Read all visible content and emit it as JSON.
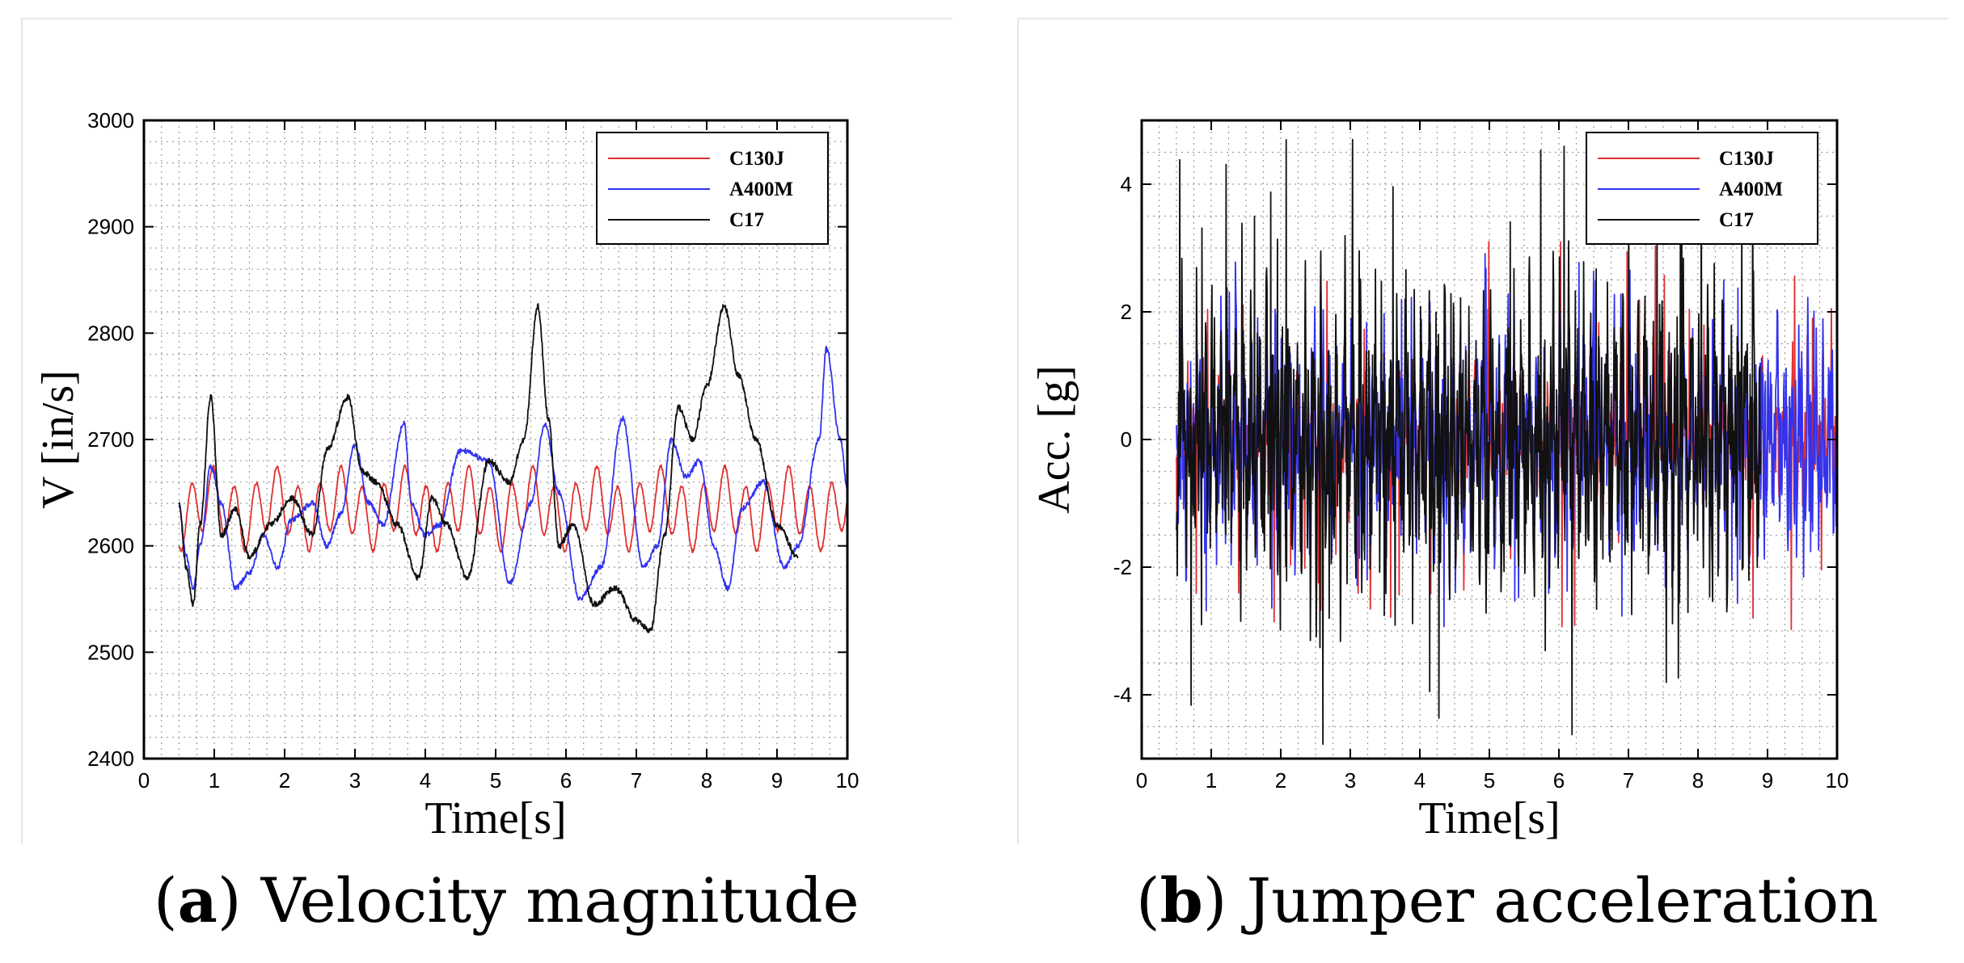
{
  "chart_data": [
    {
      "type": "line",
      "caption_letter": "a",
      "caption_open": "(",
      "caption_close": ")",
      "caption_text": "Velocity magnitude",
      "xlabel": "Time[s]",
      "ylabel": "V [in/s]",
      "xlim": [
        0,
        10
      ],
      "ylim": [
        2400,
        3000
      ],
      "xticks": [
        0,
        1,
        2,
        3,
        4,
        5,
        6,
        7,
        8,
        9,
        10
      ],
      "yticks": [
        2400,
        2500,
        2600,
        2700,
        2800,
        2900,
        3000
      ],
      "x_minor_step": 0.25,
      "y_minor_step": 20,
      "grid": true,
      "legend_position": "top-right",
      "colors": {
        "C130J": "#e03030",
        "A400M": "#3333ee",
        "C17": "#111111"
      },
      "series": [
        {
          "name": "C130J",
          "x_start": 0.5,
          "x_end": 10.0,
          "base": 2635,
          "components": [
            [
              28,
              3.3,
              0.0
            ],
            [
              12,
              1.1,
              1.2
            ]
          ],
          "noise": 1.5
        },
        {
          "name": "A400M",
          "x_start": 0.5,
          "x_end": 10.0,
          "x": [
            0.5,
            0.6,
            0.7,
            0.8,
            0.95,
            1.1,
            1.3,
            1.5,
            1.7,
            1.9,
            2.1,
            2.4,
            2.6,
            2.8,
            3.0,
            3.2,
            3.4,
            3.7,
            3.8,
            4.0,
            4.2,
            4.5,
            4.9,
            5.2,
            5.5,
            5.7,
            5.9,
            6.2,
            6.5,
            6.8,
            7.1,
            7.3,
            7.5,
            7.7,
            7.9,
            8.1,
            8.3,
            8.5,
            8.8,
            9.1,
            9.3,
            9.6,
            9.7,
            9.9,
            10.0
          ],
          "y": [
            2638,
            2590,
            2560,
            2600,
            2675,
            2640,
            2560,
            2575,
            2610,
            2580,
            2625,
            2640,
            2600,
            2630,
            2695,
            2640,
            2620,
            2715,
            2640,
            2610,
            2620,
            2690,
            2680,
            2565,
            2640,
            2715,
            2650,
            2550,
            2580,
            2720,
            2580,
            2600,
            2700,
            2665,
            2680,
            2600,
            2560,
            2635,
            2660,
            2580,
            2600,
            2700,
            2785,
            2700,
            2655
          ],
          "noise": 2.5
        },
        {
          "name": "C17",
          "x_start": 0.5,
          "x_end": 9.3,
          "x": [
            0.5,
            0.6,
            0.7,
            0.8,
            0.95,
            1.1,
            1.3,
            1.5,
            1.8,
            2.1,
            2.4,
            2.6,
            2.9,
            3.1,
            3.3,
            3.6,
            3.9,
            4.1,
            4.3,
            4.6,
            4.9,
            5.2,
            5.4,
            5.6,
            5.75,
            5.9,
            6.1,
            6.4,
            6.7,
            7.0,
            7.2,
            7.4,
            7.6,
            7.8,
            8.0,
            8.25,
            8.45,
            8.7,
            9.0,
            9.3
          ],
          "y": [
            2640,
            2580,
            2545,
            2620,
            2740,
            2610,
            2635,
            2590,
            2620,
            2645,
            2610,
            2690,
            2740,
            2670,
            2660,
            2620,
            2570,
            2645,
            2620,
            2570,
            2680,
            2660,
            2700,
            2825,
            2720,
            2600,
            2620,
            2545,
            2560,
            2530,
            2520,
            2610,
            2730,
            2700,
            2750,
            2825,
            2760,
            2700,
            2620,
            2590
          ],
          "noise": 3
        }
      ]
    },
    {
      "type": "line",
      "caption_letter": "b",
      "caption_open": "(",
      "caption_close": ")",
      "caption_text": "Jumper acceleration",
      "xlabel": "Time[s]",
      "ylabel": "Acc. [g]",
      "xlim": [
        0,
        10
      ],
      "ylim": [
        -5,
        5
      ],
      "xticks": [
        0,
        1,
        2,
        3,
        4,
        5,
        6,
        7,
        8,
        9,
        10
      ],
      "yticks": [
        -4,
        -2,
        0,
        2,
        4
      ],
      "x_minor_step": 0.25,
      "y_minor_step": 0.5,
      "grid": true,
      "legend_position": "top-right",
      "colors": {
        "C130J": "#e03030",
        "A400M": "#3333ee",
        "C17": "#111111"
      },
      "series": [
        {
          "name": "C130J",
          "x_start": 0.5,
          "x_end": 10.0,
          "amp": 0.9,
          "spike_max": 3.1,
          "seed": 11
        },
        {
          "name": "A400M",
          "x_start": 0.5,
          "x_end": 10.0,
          "amp": 1.3,
          "spike_max": 3.0,
          "seed": 29
        },
        {
          "name": "C17",
          "x_start": 0.5,
          "x_end": 8.9,
          "amp": 1.6,
          "spike_max": 4.8,
          "seed": 47
        }
      ]
    }
  ]
}
